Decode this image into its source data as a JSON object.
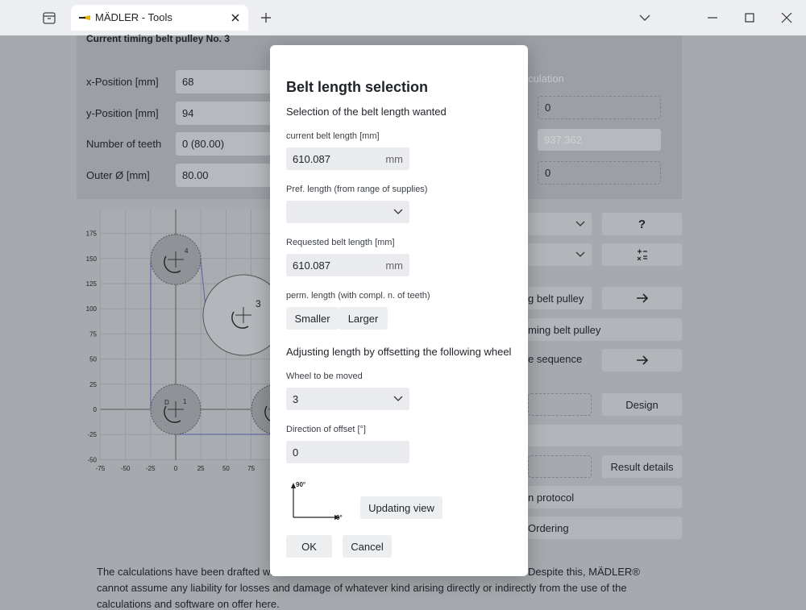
{
  "browser": {
    "tab_title": "MÄDLER - Tools"
  },
  "panel": {
    "title": "Current timing belt pulley No. 3",
    "fields": [
      {
        "label": "x-Position [mm]",
        "value": "68"
      },
      {
        "label": "y-Position [mm]",
        "value": "94"
      },
      {
        "label": "Number of teeth",
        "value": "0 (80.00)"
      },
      {
        "label": "Outer Ø [mm]",
        "value": "80.00"
      }
    ]
  },
  "right_panel": {
    "calc_label": "culation",
    "value_1": "0",
    "value_2": "937.362",
    "value_3": "0",
    "help_button": "?",
    "pulley_button": "g belt pulley",
    "pulley_row": "ming belt pulley",
    "sequence_label": "e sequence",
    "design_button": "Design",
    "result_button": "Result details",
    "protocol_row": "n protocol",
    "ordering_row": "Ordering"
  },
  "chart": {
    "yticks": [
      175,
      150,
      125,
      100,
      75,
      50,
      25,
      0,
      -25,
      -50
    ],
    "xticks": [
      -75,
      -50,
      -25,
      0,
      25,
      50,
      75
    ],
    "pulley_labels": [
      "4",
      "3",
      "D",
      "1"
    ]
  },
  "footer": {
    "line_1_start": "The calculations have been drafted wi",
    "line_1_end": "Despite this, MÄDLER®",
    "line_2": "cannot assume any liability for losses and damage of whatever kind arising directly or indirectly from the use of the",
    "line_3": "calculations and software on offer here."
  },
  "dialog": {
    "title": "Belt length selection",
    "subtitle": "Selection of the belt length wanted",
    "current_label": "current belt length [mm]",
    "current_value": "610.087",
    "current_unit": "mm",
    "pref_label": "Pref. length (from range of supplies)",
    "requested_label": "Requested belt length [mm]",
    "requested_value": "610.087",
    "requested_unit": "mm",
    "perm_label": "perm. length (with compl. n. of teeth)",
    "smaller": "Smaller",
    "larger": "Larger",
    "adjust_heading": "Adjusting length by offsetting the following wheel",
    "wheel_label": "Wheel to be moved",
    "wheel_value": "3",
    "direction_label": "Direction of offset [°]",
    "direction_value": "0",
    "axis_90": "90°",
    "axis_0": "0°",
    "update_button": "Updating view",
    "ok": "OK",
    "cancel": "Cancel"
  }
}
